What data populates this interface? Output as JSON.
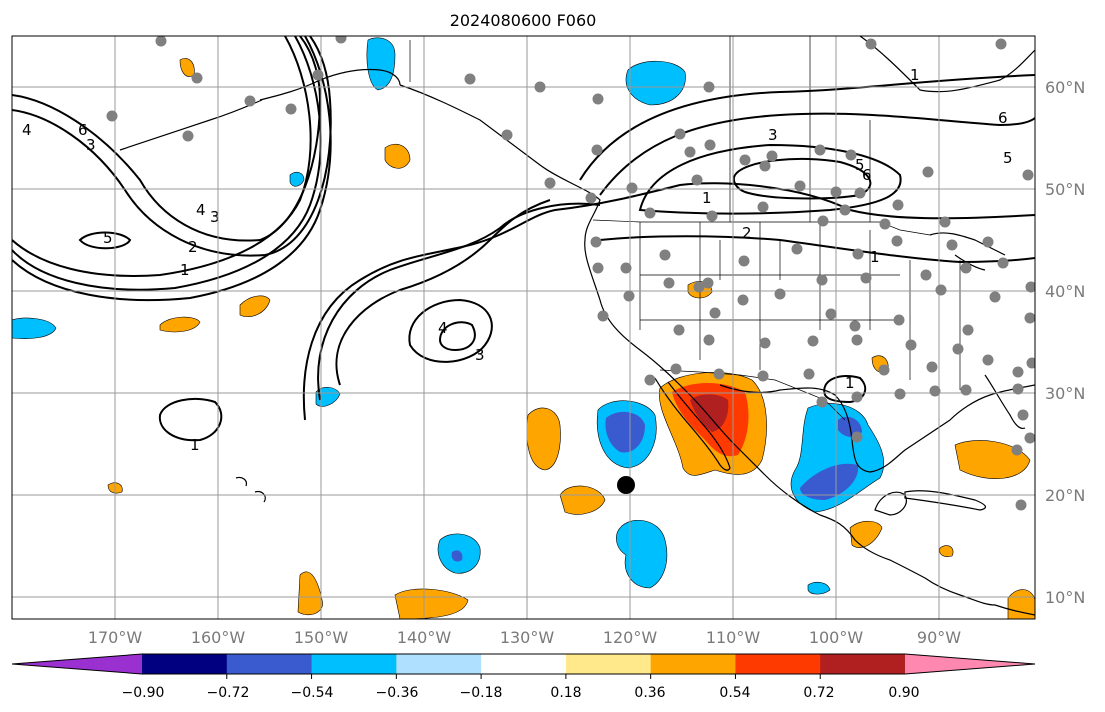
{
  "title": "2024080600 F060",
  "lon_labels": [
    "170°W",
    "160°W",
    "150°W",
    "140°W",
    "130°W",
    "120°W",
    "110°W",
    "100°W",
    "90°W"
  ],
  "lat_labels": [
    "60°N",
    "50°N",
    "40°N",
    "30°N",
    "20°N",
    "10°N"
  ],
  "colorbar": {
    "ticks": [
      "−0.90",
      "−0.72",
      "−0.54",
      "−0.36",
      "−0.18",
      "0.18",
      "0.36",
      "0.54",
      "0.72",
      "0.90"
    ],
    "colors": [
      "#9b30d0",
      "#000080",
      "#3a5bd0",
      "#00bfff",
      "#b0e0ff",
      "#ffffff",
      "#ffe98a",
      "#ffa500",
      "#ff3a00",
      "#b02020",
      "#ff88b0"
    ]
  },
  "contour_labels": [
    "1",
    "1",
    "1",
    "1",
    "2",
    "2",
    "3",
    "3",
    "3",
    "3",
    "4",
    "4",
    "4",
    "5",
    "5",
    "5",
    "6",
    "6",
    "6",
    "1",
    "1"
  ],
  "colors": {
    "station": "#808080",
    "marker": "#000000"
  }
}
